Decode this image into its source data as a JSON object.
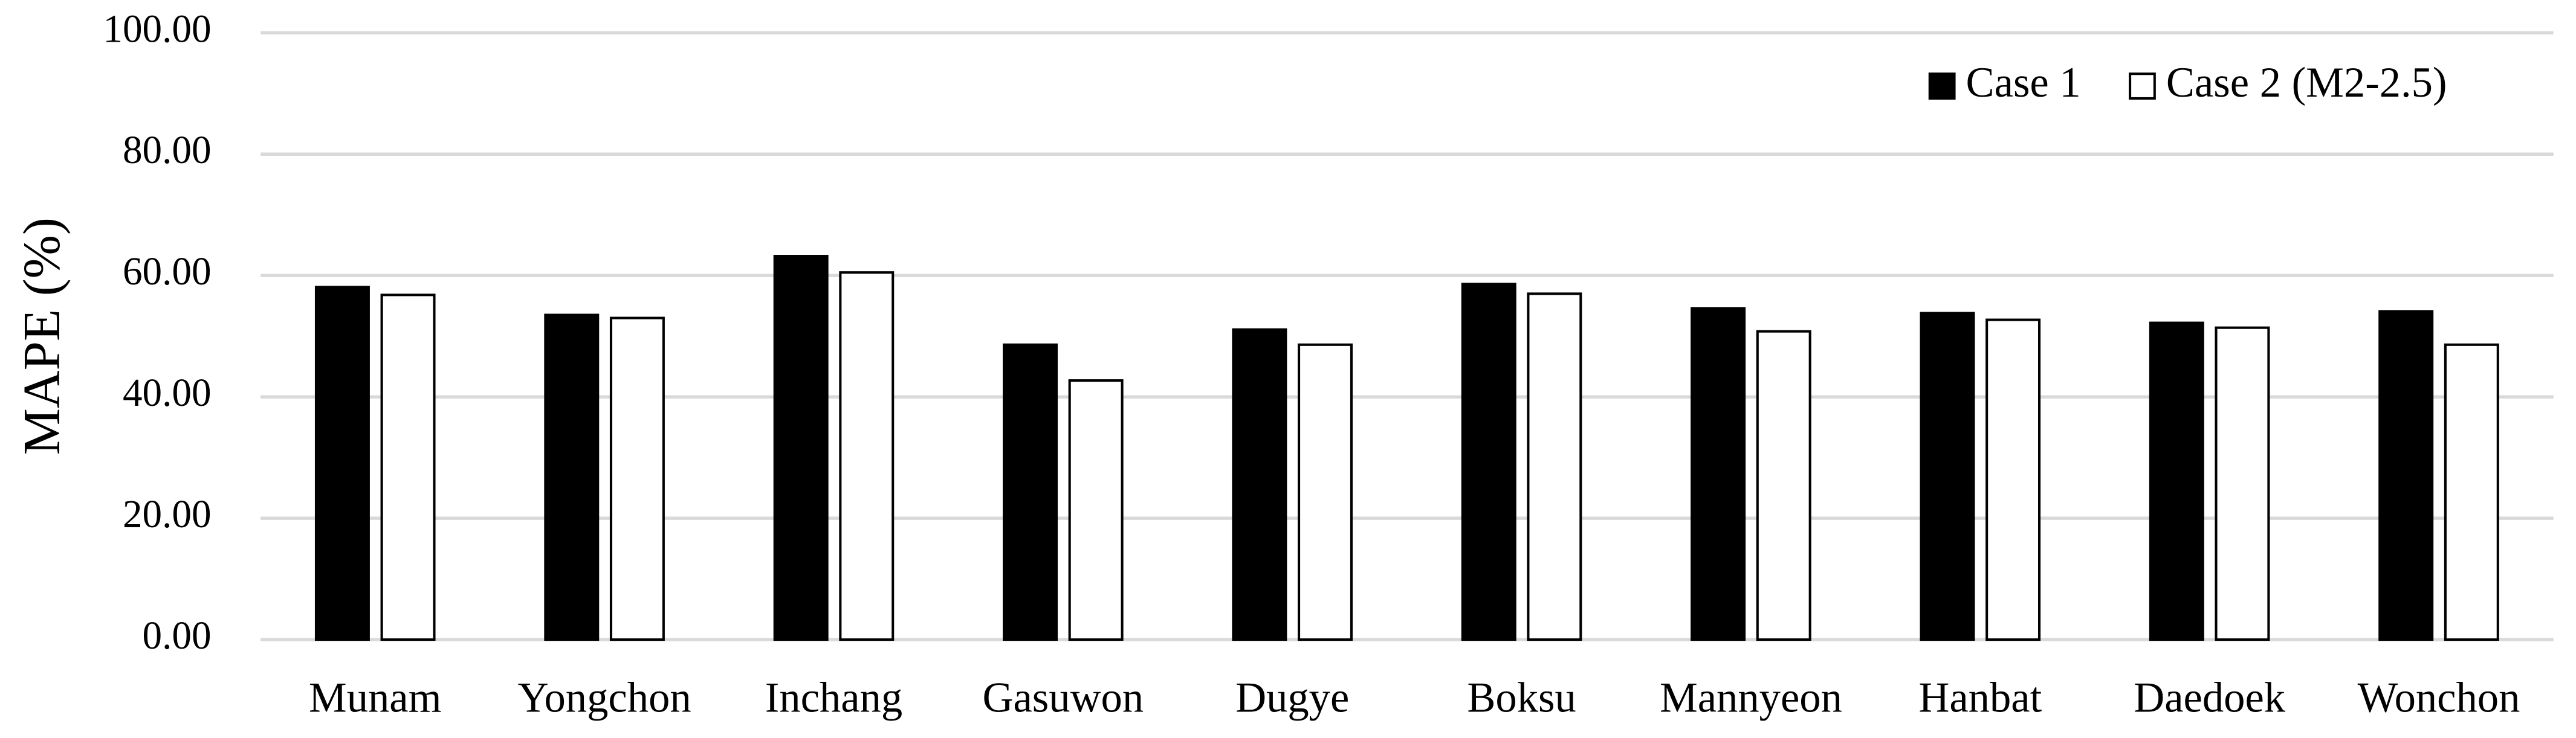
{
  "chart_data": {
    "type": "bar",
    "y_label": "MAPE (%)",
    "categories": [
      "Munam",
      "Yongchon",
      "Inchang",
      "Gasuwon",
      "Dugye",
      "Boksu",
      "Mannyeon",
      "Hanbat",
      "Daedoek",
      "Wonchon"
    ],
    "series": [
      {
        "name": "Case 1",
        "color": "#000000",
        "values": [
          58.1,
          53.5,
          63.2,
          48.6,
          51.1,
          58.6,
          54.6,
          53.8,
          52.2,
          54.1
        ]
      },
      {
        "name": "Case 2 (M2-2.5)",
        "color": "#ffffff",
        "values": [
          56.8,
          53.0,
          60.5,
          42.7,
          48.6,
          57.0,
          50.8,
          52.7,
          51.4,
          48.6
        ]
      }
    ],
    "ylim": [
      0,
      100
    ],
    "yticks": [
      {
        "value": 0,
        "label": "0.00"
      },
      {
        "value": 20,
        "label": "20.00"
      },
      {
        "value": 40,
        "label": "40.00"
      },
      {
        "value": 60,
        "label": "60.00"
      },
      {
        "value": 80,
        "label": "80.00"
      },
      {
        "value": 100,
        "label": "100.00"
      }
    ],
    "grid": true,
    "legend": "top-right"
  }
}
